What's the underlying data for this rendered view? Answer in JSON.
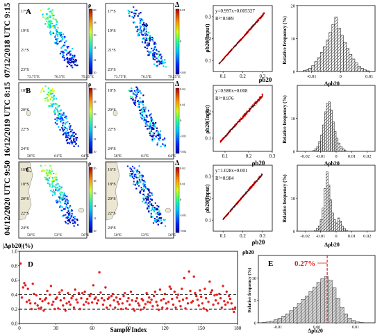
{
  "rows": [
    {
      "date_label": "07/12/2018 UTC 9:15",
      "panel_letter": "A",
      "map_lat_ticks": [
        "17°S",
        "19°S",
        "21°S",
        "23°S"
      ],
      "map_lon_ticks": [
        "73.75°E",
        "76.5°E",
        "79.25°E"
      ],
      "rho_ticks": [
        "20",
        "18",
        "16",
        "14",
        "12",
        "10"
      ],
      "delta_ticks": [
        "0.01",
        "0",
        "-0.01"
      ]
    },
    {
      "date_label": "16/12/2019 UTC 8:15",
      "panel_letter": "B",
      "map_lat_ticks": [
        "18°S",
        "20°S",
        "22°S",
        "24°S"
      ],
      "map_lon_ticks": [
        "58°E",
        "61°E",
        "64°E"
      ],
      "rho_ticks": [
        "20",
        "18",
        "16",
        "14",
        "12",
        "10"
      ],
      "delta_ticks": [
        "0.02",
        "0.01",
        "0",
        "-0.01",
        "-0.02"
      ]
    },
    {
      "date_label": "04/12/2020 UTC 9:50",
      "panel_letter": "C",
      "map_lat_ticks": [
        "16°S",
        "18°S",
        "20°S",
        "22°S",
        "24°S"
      ],
      "map_lon_ticks": [
        "50°E",
        "53°E",
        "56°E"
      ],
      "rho_ticks": [
        "20",
        "18",
        "16",
        "14",
        "12",
        "10"
      ],
      "delta_ticks": [
        "0.02",
        "0.01",
        "0",
        "-0.01",
        "-0.02"
      ]
    }
  ],
  "colorbar_labels": {
    "rho": "ρ",
    "delta": "Δ"
  },
  "scatter_labels": {
    "x": "ρb20",
    "y": "ρb20(Input)"
  },
  "hist_labels": {
    "x": "Δρb20",
    "y": "Relative frequency (%)"
  },
  "bottom": {
    "d_label": "D",
    "d_ylabel": "|Δρb20|(%)",
    "d_xlabel": "Sample Index",
    "e_label": "E",
    "e_top_label": "ρb20",
    "e_annotation": "0.27%"
  },
  "colors": {
    "red": "#e61e1e",
    "dark": "#000000",
    "grid": "#9a9a9a"
  },
  "chart_data": [
    {
      "type": "scatter",
      "panel": "row1-scatter",
      "equation": "y=0.997x+0.005327",
      "r2": "R²=0.989",
      "slope": 0.997,
      "intercept": 0.005327,
      "xlim": [
        0.05,
        0.35
      ],
      "ylim": [
        0.05,
        0.35
      ],
      "xticks": [
        0.1,
        0.2,
        0.3
      ],
      "yticks": [
        0.1,
        0.2,
        0.3
      ],
      "x_range": [
        0.08,
        0.31
      ],
      "spread": 0.005
    },
    {
      "type": "bar",
      "panel": "row1-hist",
      "xlim": [
        -0.015,
        0.012
      ],
      "ylim": [
        0,
        20
      ],
      "xticks": [
        -0.01,
        0,
        0.01
      ],
      "yticks": [
        0,
        10,
        20
      ],
      "bin_start": -0.013,
      "bin_width": 0.001,
      "values": [
        0.3,
        0.6,
        1.0,
        1.8,
        3.0,
        4.2,
        5.8,
        7.5,
        9.5,
        11.8,
        14.3,
        16.5,
        13.2,
        11.0,
        8.8,
        7.0,
        5.2,
        3.8,
        2.6,
        1.6,
        1.0,
        0.5,
        0.2
      ]
    },
    {
      "type": "scatter",
      "panel": "row2-scatter",
      "equation": "y=0.980x+0.008",
      "r2": "R²=0.976",
      "slope": 0.98,
      "intercept": 0.008,
      "xlim": [
        0.05,
        0.3
      ],
      "ylim": [
        0.05,
        0.3
      ],
      "xticks": [
        0.1,
        0.2,
        0.3
      ],
      "yticks": [
        0.1,
        0.2
      ],
      "x_range": [
        0.08,
        0.26
      ],
      "spread": 0.008
    },
    {
      "type": "bar",
      "panel": "row2-hist",
      "xlim": [
        -0.025,
        0.025
      ],
      "ylim": [
        0,
        20
      ],
      "xticks": [
        -0.02,
        -0.01,
        0,
        0.01,
        0.02
      ],
      "yticks": [
        0,
        10
      ],
      "bin_start": -0.015,
      "bin_width": 0.00125,
      "values": [
        0.3,
        0.8,
        1.5,
        3.0,
        5.0,
        8.0,
        12.0,
        14.5,
        15.0,
        12.5,
        9.0,
        6.0,
        4.0,
        2.5,
        1.5,
        0.8,
        0.4
      ]
    },
    {
      "type": "scatter",
      "panel": "row3-scatter",
      "equation": "y=1.028x+0.001",
      "r2": "R²=0.984",
      "slope": 1.028,
      "intercept": 0.001,
      "xlim": [
        0.05,
        0.35
      ],
      "ylim": [
        0.05,
        0.35
      ],
      "xticks": [
        0.1,
        0.2,
        0.3
      ],
      "yticks": [
        0.1,
        0.2,
        0.3
      ],
      "x_range": [
        0.1,
        0.3
      ],
      "spread": 0.006
    },
    {
      "type": "bar",
      "panel": "row3-hist",
      "xlim": [
        -0.025,
        0.025
      ],
      "ylim": [
        0,
        20
      ],
      "xticks": [
        -0.02,
        -0.01,
        0,
        0.01,
        0.02
      ],
      "yticks": [
        0,
        10
      ],
      "bin_start": -0.014,
      "bin_width": 0.00125,
      "values": [
        0.3,
        0.8,
        1.5,
        3.5,
        7.0,
        13.0,
        18.0,
        14.0,
        9.5,
        5.5,
        3.5,
        2.5,
        4.0,
        3.0,
        1.5,
        0.8,
        0.3
      ]
    },
    {
      "type": "scatter",
      "panel": "D",
      "xlim": [
        0,
        180
      ],
      "ylim": [
        0,
        1.0
      ],
      "xticks": [
        0,
        30,
        60,
        90,
        120,
        150,
        180
      ],
      "yticks": [
        0,
        0.2,
        0.4,
        0.6,
        0.8,
        1.0
      ],
      "hlines": [
        0.4,
        0.2
      ],
      "y": [
        0.83,
        0.36,
        0.5,
        0.56,
        0.53,
        0.3,
        0.48,
        0.32,
        0.28,
        0.2,
        0.55,
        0.41,
        0.28,
        0.39,
        0.25,
        0.21,
        0.34,
        0.22,
        0.31,
        0.18,
        0.33,
        0.35,
        0.45,
        0.28,
        0.4,
        0.52,
        0.26,
        0.3,
        0.2,
        0.34,
        0.36,
        0.21,
        0.43,
        0.32,
        0.46,
        0.25,
        0.35,
        0.18,
        0.28,
        0.42,
        0.3,
        0.26,
        0.35,
        0.38,
        0.22,
        0.47,
        0.33,
        0.29,
        0.42,
        0.2,
        0.35,
        0.42,
        0.26,
        0.44,
        0.3,
        0.34,
        0.28,
        0.38,
        0.41,
        0.29,
        0.53,
        0.34,
        0.36,
        0.28,
        0.32,
        0.71,
        0.43,
        0.35,
        0.26,
        0.32,
        0.5,
        0.22,
        0.34,
        0.36,
        0.25,
        0.38,
        0.41,
        0.32,
        0.22,
        0.36,
        0.3,
        0.27,
        0.34,
        0.2,
        0.28,
        0.38,
        0.42,
        0.21,
        0.31,
        0.35,
        0.26,
        0.44,
        0.32,
        0.2,
        0.18,
        0.31,
        0.35,
        0.28,
        0.25,
        0.19,
        0.34,
        0.32,
        0.22,
        0.27,
        0.42,
        0.3,
        0.36,
        0.29,
        0.33,
        0.24,
        0.38,
        0.44,
        0.3,
        0.25,
        0.19,
        0.47,
        0.32,
        0.22,
        0.34,
        0.41,
        0.28,
        0.21,
        0.3,
        0.51,
        0.48,
        0.34,
        0.26,
        0.44,
        0.22,
        0.36,
        0.4,
        0.31,
        0.24,
        0.48,
        0.33,
        0.63,
        0.21,
        0.35,
        0.28,
        0.72,
        0.45,
        0.29,
        0.31,
        0.65,
        0.42,
        0.38,
        0.33,
        0.25,
        0.46,
        0.37,
        0.28,
        0.21,
        0.48,
        0.35,
        0.18,
        0.3,
        0.58,
        0.43,
        0.46,
        0.26,
        0.39,
        0.32,
        0.4,
        0.28,
        0.41,
        0.35,
        0.22,
        0.52,
        0.31,
        0.26,
        0.44,
        0.29,
        0.38,
        0.34,
        0.28,
        0.2,
        0.16,
        0.22
      ]
    },
    {
      "type": "bar",
      "panel": "E",
      "xlim": [
        -0.015,
        0.015
      ],
      "ylim": [
        0,
        15
      ],
      "xticks": [
        -0.01,
        -0.005,
        0,
        0.005,
        0.01
      ],
      "yticks": [
        0,
        5,
        10
      ],
      "marker": 0.0027,
      "bin_start": -0.014,
      "bin_width": 0.001,
      "values": [
        0.1,
        0.2,
        0.4,
        0.7,
        1.0,
        1.5,
        2.0,
        2.7,
        3.5,
        4.3,
        5.2,
        6.0,
        7.0,
        8.0,
        9.0,
        9.8,
        10.3,
        9.5,
        7.8,
        5.5,
        3.5,
        2.0,
        1.0,
        0.5,
        0.2,
        0.1
      ]
    }
  ]
}
